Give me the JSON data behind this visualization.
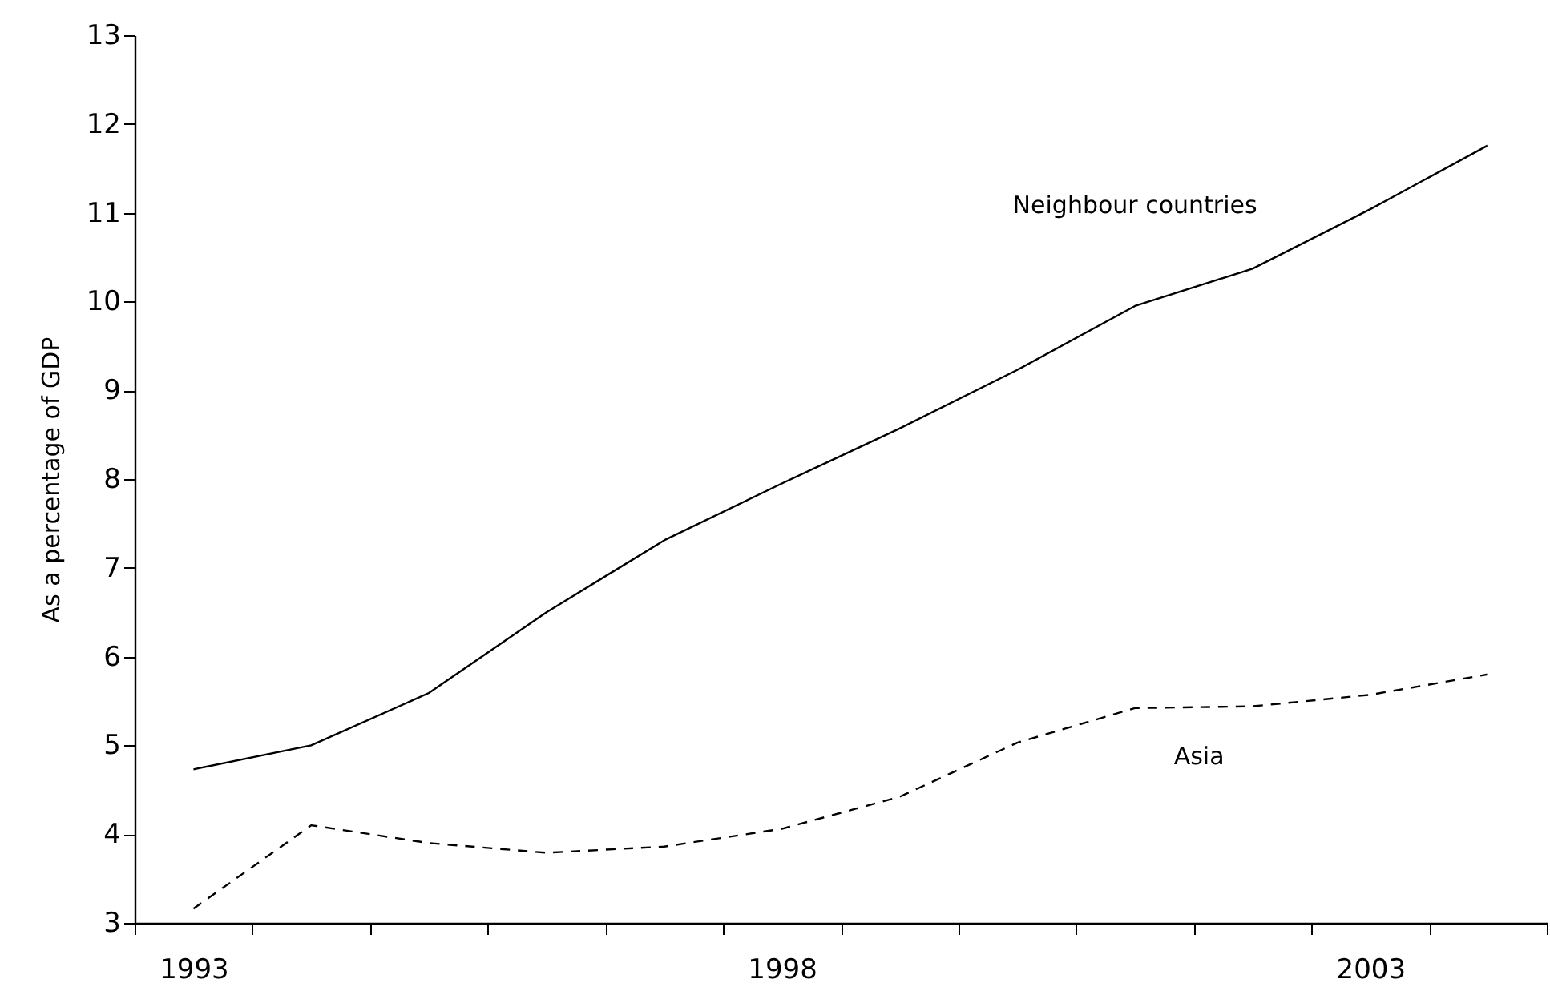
{
  "chart_data": {
    "type": "line",
    "ylabel": "As a percentage of GDP",
    "categories": [
      "1993",
      null,
      null,
      null,
      null,
      "1998",
      null,
      null,
      null,
      null,
      "2003",
      null
    ],
    "series": [
      {
        "name": "Neighbour countries",
        "color": "#000000",
        "line_style": "solid",
        "values": [
          4.73,
          5.0,
          5.59,
          6.5,
          7.31,
          7.95,
          8.57,
          9.23,
          9.95,
          10.37,
          11.04,
          11.76
        ]
      },
      {
        "name": "Asia",
        "color": "#000000",
        "line_style": "dashed",
        "values": [
          3.16,
          4.1,
          3.9,
          3.79,
          3.86,
          4.06,
          4.42,
          5.03,
          5.42,
          5.44,
          5.57,
          5.8
        ]
      }
    ],
    "ylim": [
      3,
      13
    ],
    "yticks": [
      3,
      4,
      5,
      6,
      7,
      8,
      9,
      10,
      11,
      12,
      13
    ]
  }
}
